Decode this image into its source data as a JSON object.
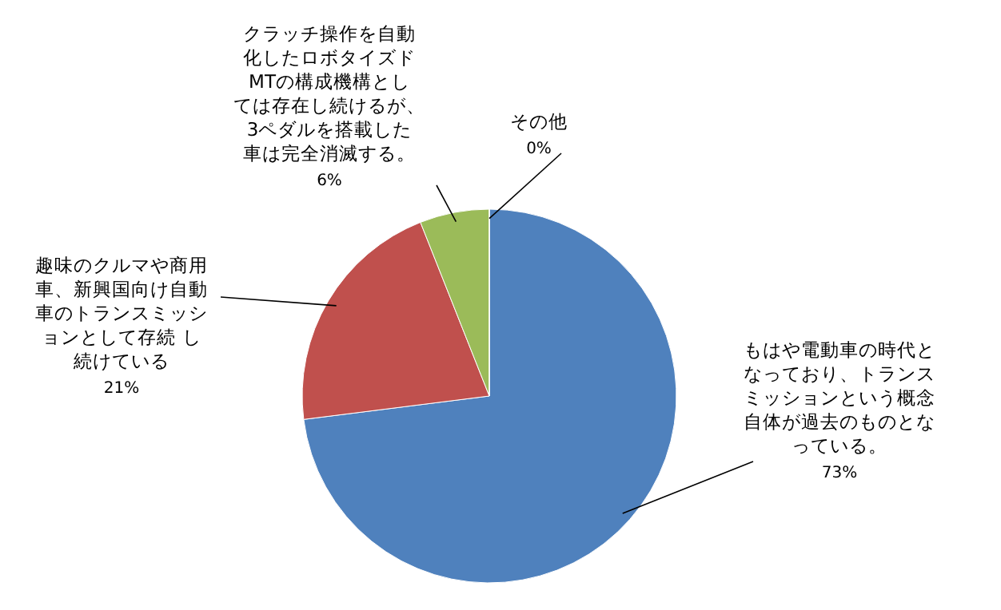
{
  "chart_data": {
    "type": "pie",
    "categories": [
      "もはや電動車の時代となっており、トランスミッションという概念自体が過去のものとなっている。",
      "趣味のクルマや商用車、新興国向け自動車のトランスミッションとして存続 し続けている",
      "クラッチ操作を自動化したロボタイズドMTの構成機構としては存在し続けるが、3ペダルを搭載した車は完全消滅する。",
      "その他"
    ],
    "values": [
      73,
      21,
      6,
      0
    ],
    "colors": [
      "#4f81bd",
      "#c0504d",
      "#9bbb59",
      "#8064a2"
    ],
    "value_labels": [
      "73%",
      "21%",
      "6%",
      "0%"
    ]
  }
}
